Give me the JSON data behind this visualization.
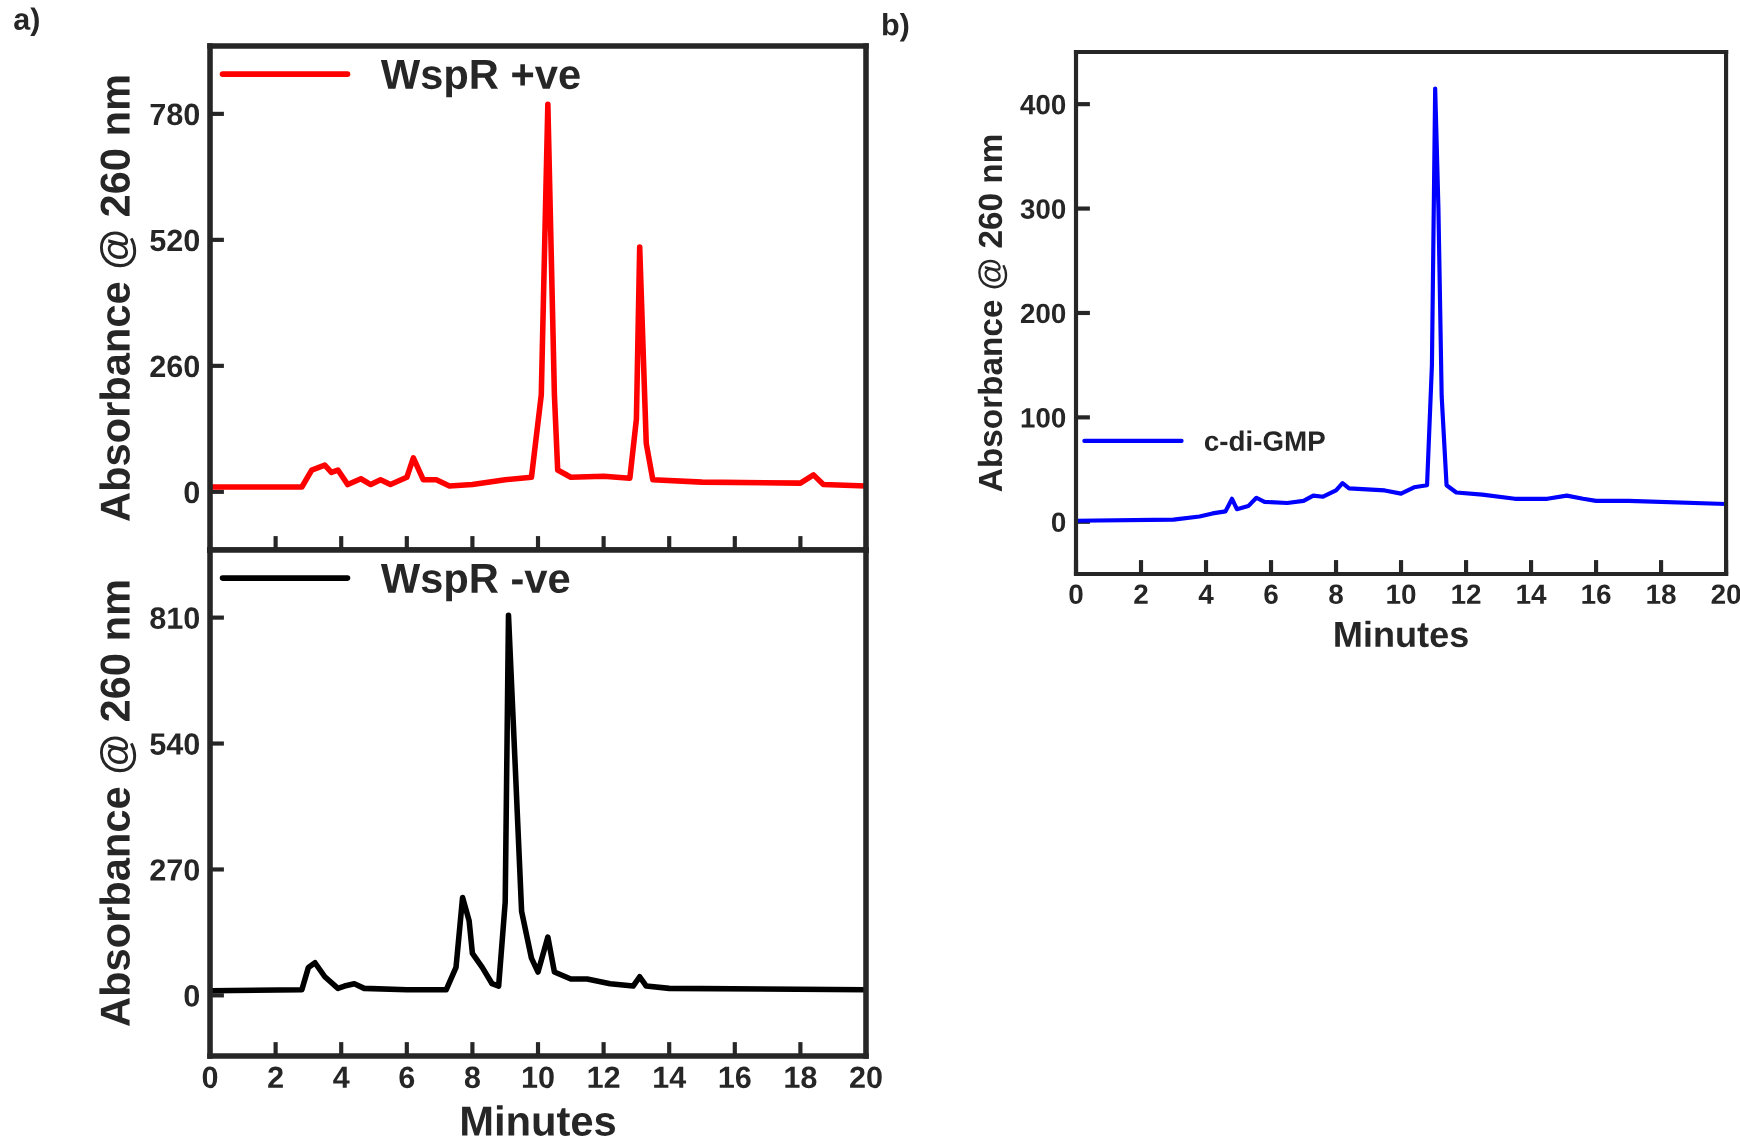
{
  "chart_data": [
    {
      "type": "line",
      "ylabel": "Absorbance @ 260 nm",
      "annotations": [
        "a)"
      ],
      "xlim": [
        0,
        20
      ],
      "xticks": [
        0,
        2,
        4,
        6,
        8,
        10,
        12,
        14,
        16,
        18,
        20
      ],
      "ylim": [
        -120,
        920
      ],
      "yticks": [
        0,
        260,
        520,
        780
      ],
      "tick_labels": "y",
      "legend": "top left",
      "grid": false,
      "series": [
        {
          "name": "WspR +ve",
          "color": "#ff0000",
          "x": [
            0,
            2.8,
            3.1,
            3.5,
            3.7,
            3.9,
            4.2,
            4.6,
            4.9,
            5.2,
            5.5,
            6.0,
            6.2,
            6.5,
            6.9,
            7.3,
            8,
            9,
            9.8,
            10.1,
            10.3,
            10.5,
            10.6,
            11,
            12,
            12.8,
            13.0,
            13.1,
            13.3,
            13.5,
            15,
            18,
            18.4,
            18.7,
            20
          ],
          "values": [
            10,
            10,
            45,
            55,
            40,
            45,
            15,
            27,
            15,
            25,
            15,
            30,
            70,
            25,
            25,
            12,
            15,
            25,
            30,
            200,
            800,
            200,
            45,
            30,
            32,
            28,
            150,
            505,
            100,
            25,
            20,
            18,
            35,
            15,
            12
          ]
        }
      ]
    },
    {
      "type": "line",
      "xlabel": "Minutes",
      "ylabel": "Absorbance @ 260 nm",
      "xlim": [
        0,
        20
      ],
      "xticks": [
        0,
        2,
        4,
        6,
        8,
        10,
        12,
        14,
        16,
        18,
        20
      ],
      "ylim": [
        -130,
        955
      ],
      "yticks": [
        0,
        270,
        540,
        810
      ],
      "legend": "top left",
      "grid": false,
      "series": [
        {
          "name": "WspR -ve",
          "color": "#000000",
          "x": [
            0,
            2.8,
            3.0,
            3.2,
            3.5,
            3.9,
            4.1,
            4.4,
            4.7,
            6,
            7.2,
            7.5,
            7.7,
            7.9,
            8.0,
            8.3,
            8.6,
            8.8,
            9.0,
            9.1,
            9.3,
            9.5,
            9.8,
            10.0,
            10.2,
            10.3,
            10.5,
            11,
            11.5,
            12.2,
            12.9,
            13.1,
            13.3,
            14,
            20
          ],
          "values": [
            10,
            12,
            60,
            70,
            40,
            15,
            20,
            25,
            15,
            12,
            12,
            60,
            210,
            160,
            90,
            60,
            25,
            20,
            200,
            815,
            500,
            180,
            80,
            50,
            100,
            125,
            50,
            35,
            35,
            25,
            20,
            40,
            20,
            15,
            12
          ]
        }
      ]
    },
    {
      "type": "line",
      "xlabel": "Minutes",
      "ylabel": "Absorbance @ 260 nm",
      "annotations": [
        "b)"
      ],
      "xlim": [
        0,
        20
      ],
      "xticks": [
        0,
        2,
        4,
        6,
        8,
        10,
        12,
        14,
        16,
        18,
        20
      ],
      "ylim": [
        -50,
        450
      ],
      "yticks": [
        0,
        100,
        200,
        300,
        400
      ],
      "legend": "left",
      "grid": false,
      "series": [
        {
          "name": "c-di-GMP",
          "color": "#0000ff",
          "x": [
            0,
            3,
            3.8,
            4.2,
            4.6,
            4.8,
            4.95,
            5.3,
            5.55,
            5.8,
            6.5,
            7.0,
            7.3,
            7.6,
            8.0,
            8.2,
            8.4,
            9.5,
            10.0,
            10.4,
            10.8,
            10.95,
            11.05,
            11.15,
            11.25,
            11.4,
            11.7,
            12.5,
            13.5,
            14.5,
            15.1,
            15.6,
            16,
            17,
            20
          ],
          "values": [
            1,
            2,
            5,
            8,
            10,
            22,
            12,
            15,
            23,
            19,
            18,
            20,
            25,
            24,
            30,
            37,
            32,
            30,
            27,
            33,
            35,
            150,
            415,
            300,
            120,
            35,
            28,
            26,
            22,
            22,
            25,
            22,
            20,
            20,
            17
          ]
        }
      ]
    }
  ]
}
